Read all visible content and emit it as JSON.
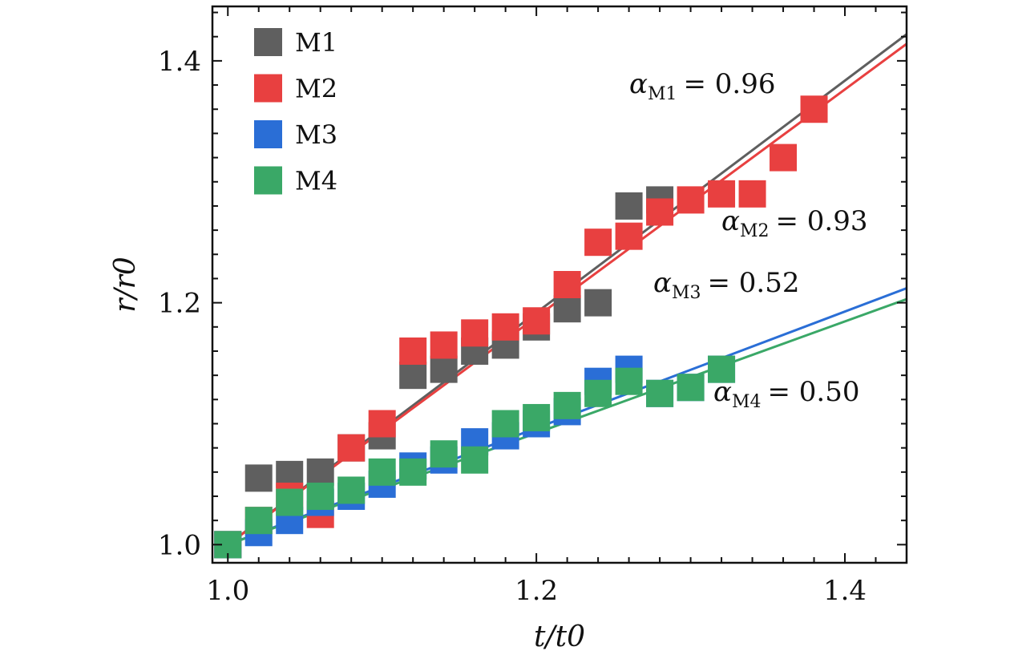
{
  "chart_data": {
    "type": "scatter",
    "xlabel": "t/t0",
    "ylabel": "r/r0",
    "xlim": [
      0.99,
      1.44
    ],
    "ylim": [
      0.985,
      1.445
    ],
    "x_ticks": [
      1.0,
      1.2,
      1.4
    ],
    "y_ticks": [
      1.0,
      1.2,
      1.4
    ],
    "x_tick_labels": [
      "1.0",
      "1.2",
      "1.4"
    ],
    "y_tick_labels": [
      "1.0",
      "1.2",
      "1.4"
    ],
    "grid": false,
    "legend_position": "top-left",
    "series": [
      {
        "name": "M1",
        "color": "#5f5f5f",
        "points": [
          [
            1.0,
            1.0
          ],
          [
            1.02,
            1.055
          ],
          [
            1.04,
            1.058
          ],
          [
            1.06,
            1.06
          ],
          [
            1.08,
            1.08
          ],
          [
            1.1,
            1.09
          ],
          [
            1.12,
            1.14
          ],
          [
            1.14,
            1.145
          ],
          [
            1.16,
            1.16
          ],
          [
            1.18,
            1.165
          ],
          [
            1.2,
            1.18
          ],
          [
            1.22,
            1.195
          ],
          [
            1.24,
            1.2
          ],
          [
            1.26,
            1.28
          ],
          [
            1.28,
            1.285
          ]
        ],
        "fit": {
          "x": [
            1.0,
            1.44
          ],
          "y": [
            1.0,
            1.422
          ]
        },
        "alpha_label": "α",
        "alpha_sub": "M1",
        "alpha_value": "= 0.96"
      },
      {
        "name": "M2",
        "color": "#e84040",
        "points": [
          [
            1.0,
            1.0
          ],
          [
            1.02,
            1.02
          ],
          [
            1.04,
            1.04
          ],
          [
            1.06,
            1.025
          ],
          [
            1.08,
            1.08
          ],
          [
            1.1,
            1.1
          ],
          [
            1.12,
            1.16
          ],
          [
            1.14,
            1.165
          ],
          [
            1.16,
            1.175
          ],
          [
            1.18,
            1.18
          ],
          [
            1.2,
            1.185
          ],
          [
            1.22,
            1.215
          ],
          [
            1.24,
            1.25
          ],
          [
            1.26,
            1.255
          ],
          [
            1.28,
            1.275
          ],
          [
            1.3,
            1.285
          ],
          [
            1.32,
            1.29
          ],
          [
            1.34,
            1.29
          ],
          [
            1.36,
            1.32
          ],
          [
            1.38,
            1.36
          ]
        ],
        "fit": {
          "x": [
            1.0,
            1.44
          ],
          "y": [
            1.0,
            1.414
          ]
        },
        "alpha_label": "α",
        "alpha_sub": "M2",
        "alpha_value": "= 0.93"
      },
      {
        "name": "M3",
        "color": "#2a6ed6",
        "points": [
          [
            1.0,
            1.0
          ],
          [
            1.02,
            1.01
          ],
          [
            1.04,
            1.02
          ],
          [
            1.06,
            1.035
          ],
          [
            1.08,
            1.04
          ],
          [
            1.1,
            1.05
          ],
          [
            1.12,
            1.065
          ],
          [
            1.14,
            1.07
          ],
          [
            1.16,
            1.085
          ],
          [
            1.18,
            1.09
          ],
          [
            1.2,
            1.1
          ],
          [
            1.22,
            1.11
          ],
          [
            1.24,
            1.135
          ],
          [
            1.26,
            1.145
          ],
          [
            1.28,
            1.125
          ],
          [
            1.3,
            1.13
          ],
          [
            1.32,
            1.145
          ]
        ],
        "fit": {
          "x": [
            1.0,
            1.44
          ],
          "y": [
            1.0,
            1.212
          ]
        },
        "alpha_label": "α",
        "alpha_sub": "M3",
        "alpha_value": "= 0.52"
      },
      {
        "name": "M4",
        "color": "#3aa867",
        "points": [
          [
            1.0,
            1.0
          ],
          [
            1.02,
            1.02
          ],
          [
            1.04,
            1.035
          ],
          [
            1.06,
            1.04
          ],
          [
            1.08,
            1.045
          ],
          [
            1.1,
            1.06
          ],
          [
            1.12,
            1.06
          ],
          [
            1.14,
            1.075
          ],
          [
            1.16,
            1.07
          ],
          [
            1.18,
            1.1
          ],
          [
            1.2,
            1.105
          ],
          [
            1.22,
            1.115
          ],
          [
            1.24,
            1.125
          ],
          [
            1.26,
            1.135
          ],
          [
            1.28,
            1.125
          ],
          [
            1.3,
            1.13
          ],
          [
            1.32,
            1.145
          ]
        ],
        "fit": {
          "x": [
            1.0,
            1.44
          ],
          "y": [
            1.0,
            1.203
          ]
        },
        "alpha_label": "α",
        "alpha_sub": "M4",
        "alpha_value": "= 0.50"
      }
    ]
  }
}
